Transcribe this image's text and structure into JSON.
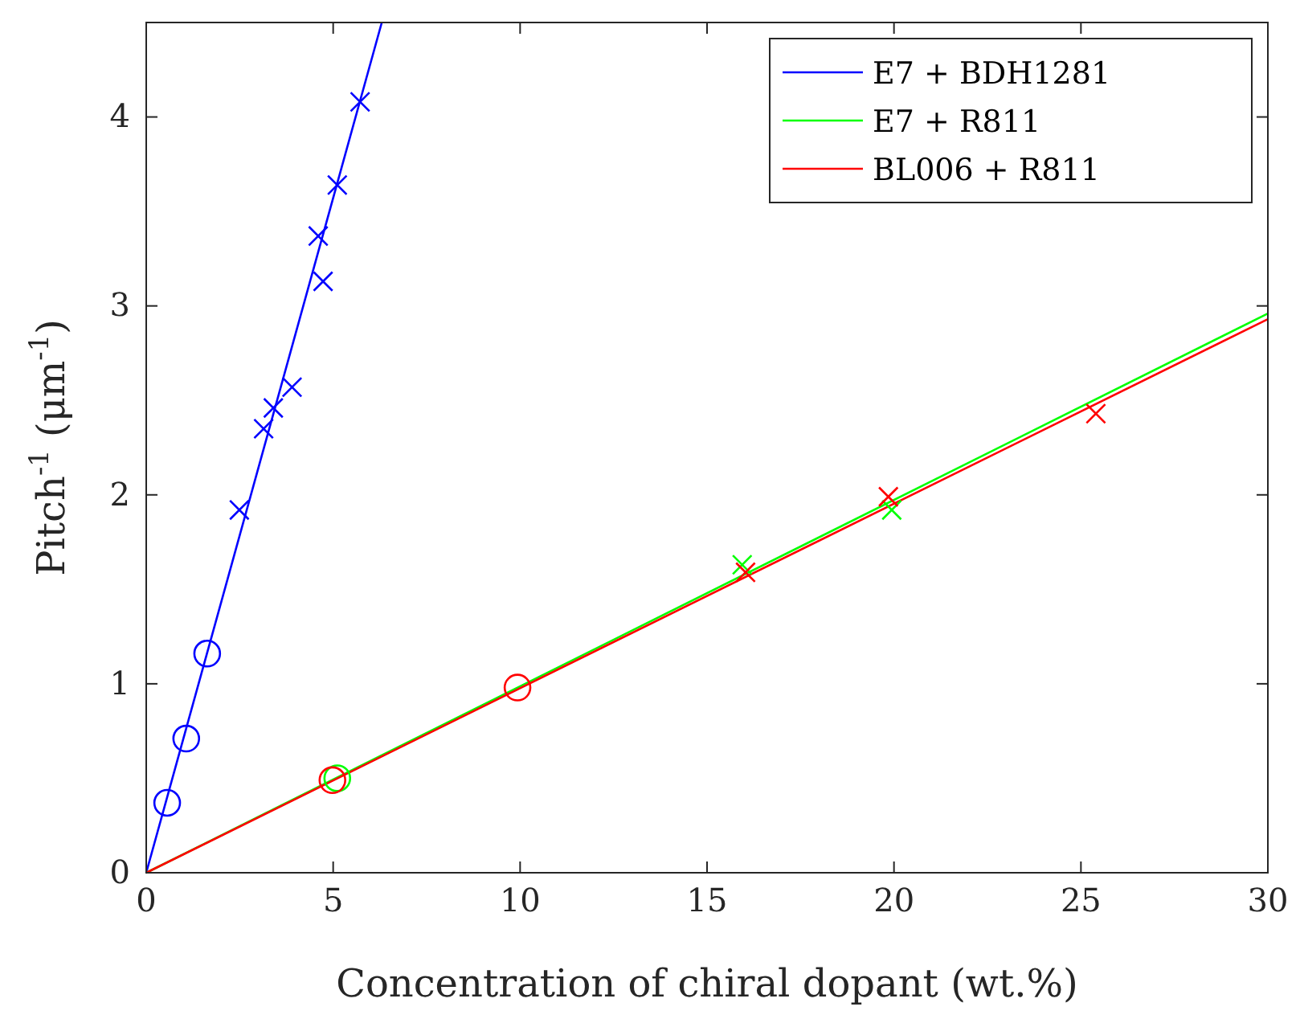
{
  "chart_data": {
    "type": "scatter",
    "xlabel": "Concentration of chiral dopant (wt.%)",
    "ylabel": "Pitch$^{-1}$ (μm$^{-1}$)",
    "xlim": [
      0,
      30
    ],
    "ylim": [
      0,
      4.5
    ],
    "xticks": [
      0,
      5,
      10,
      15,
      20,
      25,
      30
    ],
    "yticks": [
      0,
      1,
      2,
      3,
      4
    ],
    "grid": false,
    "legend": "top right",
    "series": [
      {
        "name": "E7 + BDH1281",
        "type": "line",
        "color": "#0000ff",
        "marker": "none",
        "x": [
          0,
          6.3
        ],
        "values": [
          0,
          4.5
        ]
      },
      {
        "name": "E7 + R811",
        "type": "line",
        "color": "#00ff00",
        "marker": "none",
        "x": [
          0,
          30
        ],
        "values": [
          0,
          2.96
        ]
      },
      {
        "name": "BL006 + R811",
        "type": "line",
        "color": "#ff0000",
        "marker": "none",
        "x": [
          0,
          30
        ],
        "values": [
          0,
          2.93
        ]
      },
      {
        "type": "scatter",
        "color": "#0000ff",
        "marker": "cross",
        "x": [
          2.49,
          3.14,
          3.4,
          3.9,
          4.6,
          4.73,
          5.11,
          5.72
        ],
        "values": [
          1.92,
          2.35,
          2.46,
          2.57,
          3.37,
          3.13,
          3.64,
          4.08
        ]
      },
      {
        "type": "scatter",
        "color": "#0000ff",
        "marker": "circle",
        "x": [
          0.56,
          1.07,
          1.63
        ],
        "values": [
          0.37,
          0.71,
          1.16
        ]
      },
      {
        "type": "scatter",
        "color": "#00ff00",
        "marker": "circle",
        "x": [
          5.11
        ],
        "values": [
          0.5
        ]
      },
      {
        "type": "scatter",
        "color": "#00ff00",
        "marker": "cross",
        "x": [
          15.94,
          19.94
        ],
        "values": [
          1.63,
          1.92
        ]
      },
      {
        "type": "scatter",
        "color": "#ff0000",
        "marker": "circle",
        "x": [
          4.98,
          9.93
        ],
        "values": [
          0.49,
          0.98
        ]
      },
      {
        "type": "scatter",
        "color": "#ff0000",
        "marker": "cross",
        "x": [
          16.03,
          19.85,
          25.4
        ],
        "values": [
          1.59,
          1.99,
          2.43
        ]
      }
    ]
  }
}
